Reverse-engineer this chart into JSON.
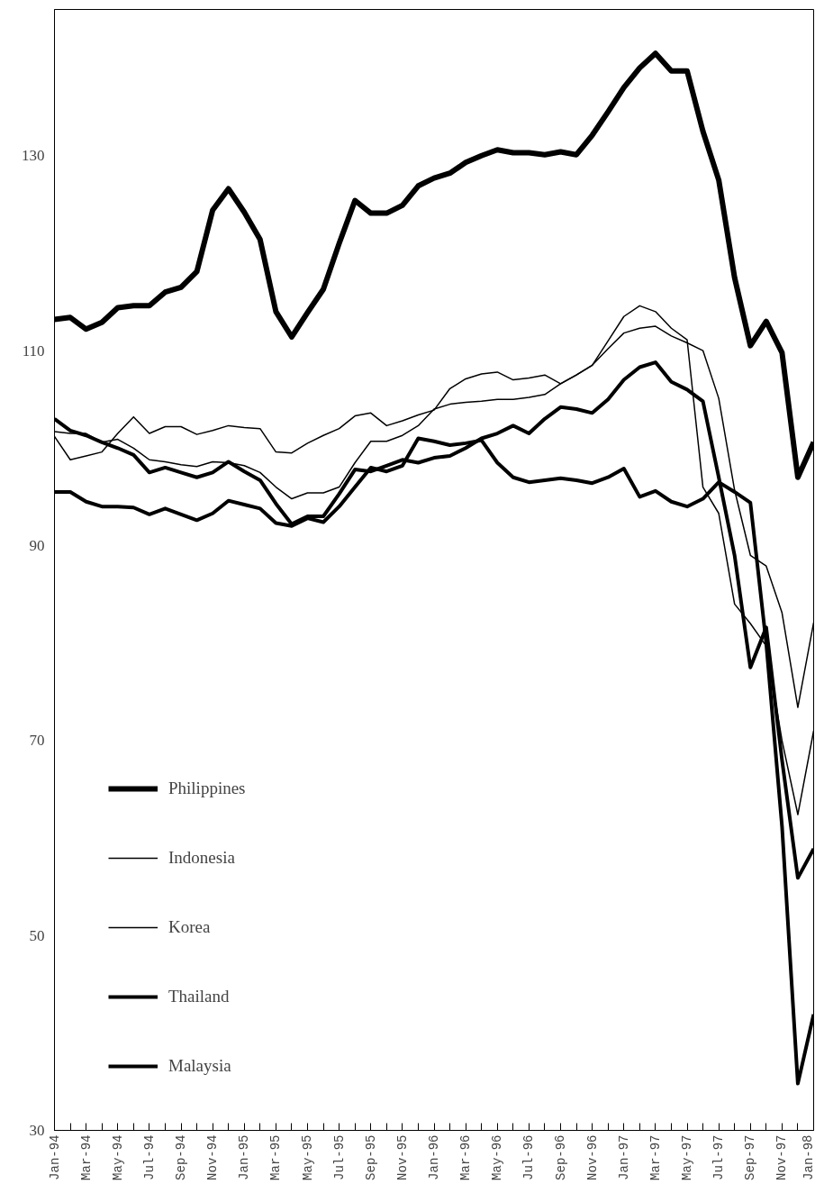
{
  "chart_data": {
    "type": "line",
    "categories": [
      "Jan-94",
      null,
      "Mar-94",
      null,
      "May-94",
      null,
      "Jul-94",
      null,
      "Sep-94",
      null,
      "Nov-94",
      null,
      "Jan-95",
      null,
      "Mar-95",
      null,
      "May-95",
      null,
      "Jul-95",
      null,
      "Sep-95",
      null,
      "Nov-95",
      null,
      "Jan-96",
      null,
      "Mar-96",
      null,
      "May-96",
      null,
      "Jul-96",
      null,
      "Sep-96",
      null,
      "Nov-96",
      null,
      "Jan-97",
      null,
      "Mar-97",
      null,
      "May-97",
      null,
      "Jul-97",
      null,
      "Sep-97",
      null,
      "Nov-97",
      null,
      "Jan-98"
    ],
    "series": [
      {
        "name": "Philippines",
        "color": "#000000",
        "values": [
          113.2,
          113.4,
          112.2,
          112.9,
          114.4,
          114.6,
          114.6,
          116.0,
          116.5,
          118.1,
          124.4,
          126.6,
          124.2,
          121.4,
          114.0,
          111.4,
          113.9,
          116.3,
          121.0,
          125.4,
          124.1,
          124.1,
          124.9,
          126.9,
          127.7,
          128.2,
          129.3,
          130.0,
          130.6,
          130.3,
          130.3,
          130.1,
          130.4,
          130.1,
          132.1,
          134.5,
          137.0,
          139.0,
          140.5,
          138.7,
          138.7,
          132.5,
          127.5,
          117.5,
          110.5,
          113.0,
          109.8,
          97.0,
          100.6
        ]
      },
      {
        "name": "Indonesia",
        "color": "#000000",
        "values": [
          101.2,
          98.8,
          99.2,
          99.6,
          101.5,
          103.2,
          101.5,
          102.2,
          102.2,
          101.4,
          101.8,
          102.3,
          102.1,
          102.0,
          99.6,
          99.5,
          100.5,
          101.3,
          102.0,
          103.3,
          103.6,
          102.3,
          102.8,
          103.4,
          103.9,
          106.1,
          107.1,
          107.6,
          107.8,
          107.0,
          107.2,
          107.5,
          106.6,
          107.5,
          108.5,
          111.0,
          113.5,
          114.6,
          114.0,
          112.3,
          111.1,
          96.0,
          93.3,
          84.0,
          82.0,
          79.7,
          70.0,
          62.4,
          71.0
        ]
      },
      {
        "name": "Korea",
        "color": "#000000",
        "values": [
          101.7,
          101.5,
          101.5,
          100.6,
          100.9,
          100.0,
          98.8,
          98.6,
          98.3,
          98.1,
          98.6,
          98.5,
          98.2,
          97.5,
          96.0,
          94.8,
          95.4,
          95.4,
          96.0,
          98.5,
          100.7,
          100.7,
          101.3,
          102.3,
          104.0,
          104.5,
          104.7,
          104.8,
          105.0,
          105.0,
          105.2,
          105.5,
          106.6,
          107.5,
          108.5,
          110.2,
          111.8,
          112.3,
          112.5,
          111.5,
          110.8,
          110.0,
          105.1,
          95.7,
          89.0,
          87.9,
          83.1,
          73.4,
          82.1
        ]
      },
      {
        "name": "Thailand",
        "color": "#000000",
        "values": [
          95.5,
          95.5,
          94.5,
          94.0,
          94.0,
          93.9,
          93.2,
          93.8,
          93.2,
          92.6,
          93.3,
          94.6,
          94.2,
          93.8,
          92.3,
          92.0,
          92.8,
          92.4,
          94.0,
          96.0,
          98.0,
          97.6,
          98.2,
          101.0,
          100.7,
          100.3,
          100.5,
          100.8,
          98.5,
          97.0,
          96.5,
          96.7,
          96.9,
          96.7,
          96.4,
          97.0,
          97.9,
          95.0,
          95.6,
          94.5,
          94.0,
          94.8,
          96.5,
          95.5,
          94.4,
          80.0,
          61.2,
          34.8,
          41.9
        ]
      },
      {
        "name": "Malaysia",
        "color": "#000000",
        "values": [
          103.0,
          101.8,
          101.3,
          100.6,
          100.0,
          99.3,
          97.5,
          98.0,
          97.5,
          97.0,
          97.5,
          98.6,
          97.6,
          96.7,
          94.3,
          92.2,
          93.0,
          93.0,
          95.3,
          97.8,
          97.6,
          98.2,
          98.8,
          98.5,
          99.0,
          99.2,
          100.0,
          101.0,
          101.5,
          102.3,
          101.5,
          103.0,
          104.2,
          104.0,
          103.6,
          105.0,
          107.0,
          108.3,
          108.8,
          106.8,
          106.0,
          104.8,
          97.0,
          89.0,
          77.5,
          81.6,
          68.0,
          55.9,
          58.9
        ]
      }
    ],
    "ylim": [
      30,
      145
    ],
    "yticks": [
      30,
      50,
      70,
      90,
      110,
      130
    ],
    "grid": false,
    "legend": "bottom left",
    "marker": "none",
    "line_style": "solid"
  }
}
